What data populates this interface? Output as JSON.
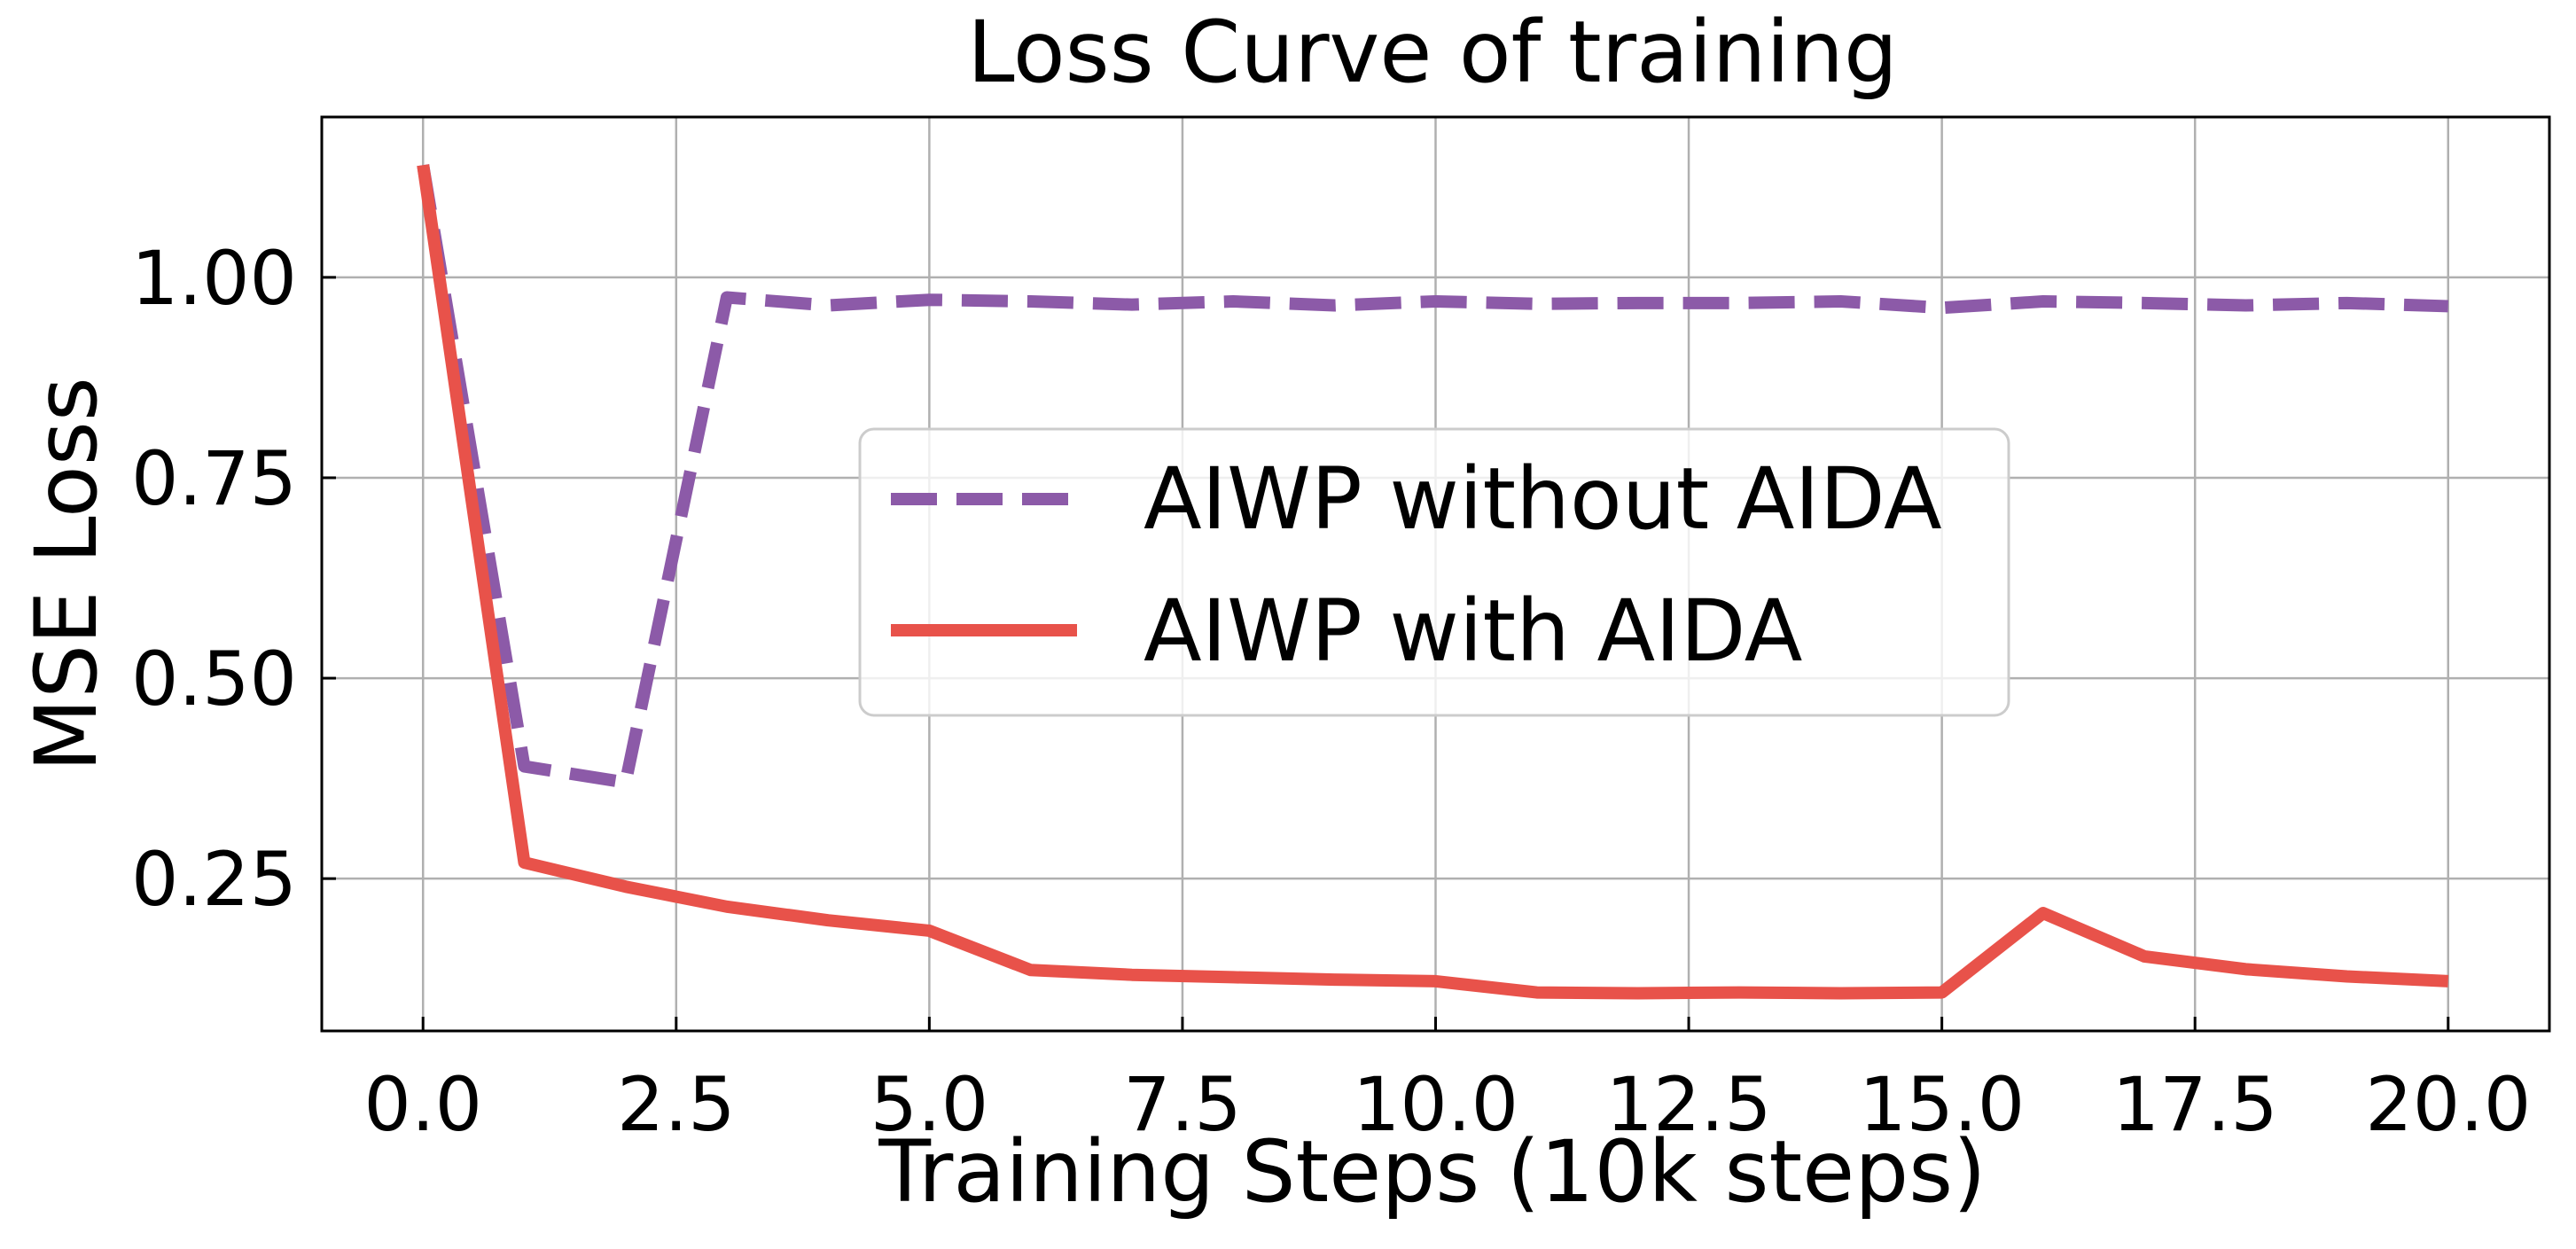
{
  "chart_data": {
    "type": "line",
    "title": "Loss Curve of training",
    "xlabel": "Training Steps (10k steps)",
    "ylabel": "MSE Loss",
    "xlim": [
      -1.0,
      21.0
    ],
    "ylim": [
      0.06,
      1.2
    ],
    "x_ticks": [
      0.0,
      2.5,
      5.0,
      7.5,
      10.0,
      12.5,
      15.0,
      17.5,
      20.0
    ],
    "x_tick_labels": [
      "0.0",
      "2.5",
      "5.0",
      "7.5",
      "10.0",
      "12.5",
      "15.0",
      "17.5",
      "20.0"
    ],
    "y_ticks": [
      0.25,
      0.5,
      0.75,
      1.0
    ],
    "y_tick_labels": [
      "0.25",
      "0.50",
      "0.75",
      "1.00"
    ],
    "grid": true,
    "legend_position": "center",
    "x": [
      0,
      1,
      2,
      3,
      4,
      5,
      6,
      7,
      8,
      9,
      10,
      11,
      12,
      13,
      14,
      15,
      16,
      17,
      18,
      19,
      20
    ],
    "series": [
      {
        "name": "AIWP without AIDA",
        "style": "dashed",
        "color": "#8c5aa8",
        "values": [
          1.14,
          0.39,
          0.37,
          0.975,
          0.965,
          0.972,
          0.97,
          0.966,
          0.97,
          0.965,
          0.97,
          0.967,
          0.968,
          0.968,
          0.97,
          0.962,
          0.97,
          0.968,
          0.965,
          0.968,
          0.964
        ]
      },
      {
        "name": "AIWP with AIDA",
        "style": "solid",
        "color": "#e8524a",
        "values": [
          1.14,
          0.27,
          0.24,
          0.215,
          0.198,
          0.185,
          0.136,
          0.13,
          0.127,
          0.124,
          0.122,
          0.108,
          0.107,
          0.108,
          0.107,
          0.108,
          0.207,
          0.153,
          0.137,
          0.128,
          0.122
        ]
      }
    ]
  }
}
